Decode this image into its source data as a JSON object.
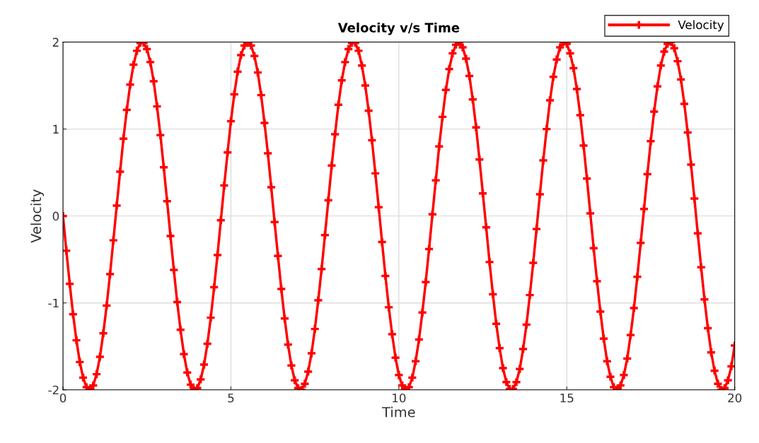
{
  "chart_data": {
    "type": "line",
    "title": "Velocity v/s Time",
    "xlabel": "Time",
    "ylabel": "Velocity",
    "x": [
      0,
      0.1,
      0.2,
      0.3,
      0.4,
      0.5,
      0.6,
      0.7,
      0.8,
      0.9,
      1,
      1.1,
      1.2,
      1.3,
      1.4,
      1.5,
      1.6,
      1.7,
      1.8,
      1.9,
      2,
      2.1,
      2.2,
      2.3,
      2.4,
      2.5,
      2.6,
      2.7,
      2.8,
      2.9,
      3,
      3.1,
      3.2,
      3.3,
      3.4,
      3.5,
      3.6,
      3.7,
      3.8,
      3.9,
      4,
      4.1,
      4.2,
      4.3,
      4.4,
      4.5,
      4.6,
      4.7,
      4.8,
      4.9,
      5,
      5.1,
      5.2,
      5.3,
      5.4,
      5.5,
      5.6,
      5.7,
      5.8,
      5.9,
      6,
      6.1,
      6.2,
      6.3,
      6.4,
      6.5,
      6.6,
      6.7,
      6.8,
      6.9,
      7,
      7.1,
      7.2,
      7.3,
      7.4,
      7.5,
      7.6,
      7.7,
      7.8,
      7.9,
      8,
      8.1,
      8.2,
      8.3,
      8.4,
      8.5,
      8.6,
      8.7,
      8.8,
      8.9,
      9,
      9.1,
      9.2,
      9.3,
      9.4,
      9.5,
      9.6,
      9.7,
      9.8,
      9.9,
      10,
      10.1,
      10.2,
      10.3,
      10.4,
      10.5,
      10.6,
      10.7,
      10.8,
      10.9,
      11,
      11.1,
      11.2,
      11.3,
      11.4,
      11.5,
      11.6,
      11.7,
      11.8,
      11.9,
      12,
      12.1,
      12.2,
      12.3,
      12.4,
      12.5,
      12.6,
      12.7,
      12.8,
      12.9,
      13,
      13.1,
      13.2,
      13.3,
      13.4,
      13.5,
      13.6,
      13.7,
      13.8,
      13.9,
      14,
      14.1,
      14.2,
      14.3,
      14.4,
      14.5,
      14.6,
      14.7,
      14.8,
      14.9,
      15,
      15.1,
      15.2,
      15.3,
      15.4,
      15.5,
      15.6,
      15.7,
      15.8,
      15.9,
      16,
      16.1,
      16.2,
      16.3,
      16.4,
      16.5,
      16.6,
      16.7,
      16.8,
      16.9,
      17,
      17.1,
      17.2,
      17.3,
      17.4,
      17.5,
      17.6,
      17.7,
      17.8,
      17.9,
      18,
      18.1,
      18.2,
      18.3,
      18.4,
      18.5,
      18.6,
      18.7,
      18.8,
      18.9,
      19,
      19.1,
      19.2,
      19.3,
      19.4,
      19.5,
      19.6,
      19.7,
      19.8,
      19.9,
      20
    ],
    "series": [
      {
        "name": "Velocity",
        "color": "#ff0000",
        "values": [
          0,
          -0.4,
          -0.78,
          -1.13,
          -1.43,
          -1.68,
          -1.86,
          -1.97,
          -2.0,
          -1.95,
          -1.82,
          -1.62,
          -1.35,
          -1.03,
          -0.67,
          -0.28,
          0.12,
          0.51,
          0.89,
          1.22,
          1.51,
          1.74,
          1.9,
          1.99,
          1.99,
          1.92,
          1.77,
          1.55,
          1.26,
          0.93,
          0.56,
          0.17,
          -0.23,
          -0.62,
          -0.99,
          -1.31,
          -1.59,
          -1.8,
          -1.94,
          -2.0,
          -1.98,
          -1.88,
          -1.71,
          -1.47,
          -1.17,
          -0.82,
          -0.45,
          -0.05,
          0.35,
          0.73,
          1.09,
          1.4,
          1.66,
          1.85,
          1.96,
          2.0,
          1.96,
          1.84,
          1.65,
          1.39,
          1.07,
          0.72,
          0.33,
          -0.07,
          -0.46,
          -0.84,
          -1.18,
          -1.48,
          -1.72,
          -1.89,
          -1.98,
          -2.0,
          -1.93,
          -1.79,
          -1.58,
          -1.3,
          -0.97,
          -0.61,
          -0.22,
          0.18,
          0.58,
          0.94,
          1.28,
          1.56,
          1.77,
          1.92,
          1.99,
          1.99,
          1.9,
          1.73,
          1.5,
          1.21,
          0.87,
          0.49,
          0.1,
          -0.3,
          -0.69,
          -1.05,
          -1.36,
          -1.63,
          -1.83,
          -1.95,
          -2.0,
          -1.97,
          -1.86,
          -1.67,
          -1.42,
          -1.11,
          -0.76,
          -0.38,
          0.02,
          0.41,
          0.8,
          1.14,
          1.45,
          1.69,
          1.87,
          1.97,
          2.0,
          1.94,
          1.81,
          1.61,
          1.34,
          1.02,
          0.65,
          0.26,
          -0.13,
          -0.53,
          -0.9,
          -1.24,
          -1.52,
          -1.75,
          -1.91,
          -1.99,
          -1.99,
          -1.91,
          -1.76,
          -1.53,
          -1.25,
          -0.91,
          -0.54,
          -0.15,
          0.25,
          0.64,
          1.0,
          1.33,
          1.6,
          1.8,
          1.94,
          2.0,
          1.98,
          1.87,
          1.7,
          1.46,
          1.16,
          0.81,
          0.43,
          0.03,
          -0.37,
          -0.75,
          -1.1,
          -1.41,
          -1.67,
          -1.85,
          -1.97,
          -2.0,
          -1.95,
          -1.83,
          -1.64,
          -1.37,
          -1.06,
          -0.7,
          -0.31,
          0.08,
          0.48,
          0.86,
          1.2,
          1.49,
          1.73,
          1.89,
          1.98,
          2.0,
          1.93,
          1.78,
          1.57,
          1.29,
          0.96,
          0.59,
          0.2,
          -0.2,
          -0.59,
          -0.96,
          -1.29,
          -1.57,
          -1.78,
          -1.93,
          -2.0,
          -1.98,
          -1.89,
          -1.73,
          -1.49
        ]
      }
    ],
    "xlim": [
      0,
      20
    ],
    "xticks": [
      0,
      5,
      10,
      15,
      20
    ],
    "ylim": [
      -2,
      2
    ],
    "yticks": [
      -2,
      -1,
      0,
      1,
      2
    ],
    "grid": true,
    "legend": "top right",
    "marker": "cross",
    "line_style": "solid"
  }
}
